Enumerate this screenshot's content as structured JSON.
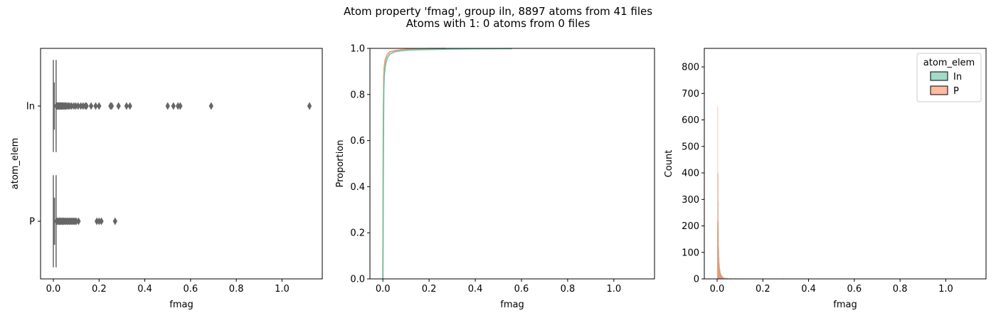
{
  "figure": {
    "title_line1": "Atom property 'fmag', group iln, 8897 atoms from 41 files",
    "title_line2": "Atoms with 1: 0 atoms from 0 files"
  },
  "colors": {
    "In": "#66c2a5",
    "P": "#fc8d62",
    "box": "#666666",
    "axis": "#000000"
  },
  "chart_data": [
    {
      "type": "boxplot",
      "xlabel": "fmag",
      "ylabel": "atom_elem",
      "xlim": [
        -0.056,
        1.176
      ],
      "xticks": [
        "0.0",
        "0.2",
        "0.4",
        "0.6",
        "0.8",
        "1.0"
      ],
      "xtick_values": [
        0,
        0.2,
        0.4,
        0.6,
        0.8,
        1.0
      ],
      "categories": [
        "In",
        "P"
      ],
      "boxes": [
        {
          "name": "In",
          "q1": 0.001,
          "median": 0.002,
          "q3": 0.004,
          "whisker_low": 0.0,
          "whisker_high": 0.012,
          "cap_halfwidth": 0.4,
          "box_halfwidth": 0.2,
          "outliers": [
            0.013,
            0.016,
            0.019,
            0.022,
            0.025,
            0.028,
            0.031,
            0.034,
            0.037,
            0.04,
            0.043,
            0.047,
            0.051,
            0.055,
            0.06,
            0.066,
            0.072,
            0.08,
            0.09,
            0.098,
            0.108,
            0.12,
            0.13,
            0.14,
            0.145,
            0.165,
            0.185,
            0.2,
            0.25,
            0.255,
            0.285,
            0.32,
            0.335,
            0.5,
            0.525,
            0.545,
            0.555,
            0.69,
            1.12
          ]
        },
        {
          "name": "P",
          "q1": 0.001,
          "median": 0.002,
          "q3": 0.005,
          "whisker_low": 0.0,
          "whisker_high": 0.012,
          "cap_halfwidth": 0.4,
          "box_halfwidth": 0.2,
          "outliers": [
            0.014,
            0.018,
            0.022,
            0.026,
            0.03,
            0.034,
            0.038,
            0.042,
            0.046,
            0.05,
            0.055,
            0.06,
            0.065,
            0.07,
            0.075,
            0.08,
            0.085,
            0.09,
            0.095,
            0.1,
            0.11,
            0.19,
            0.2,
            0.21,
            0.27
          ]
        }
      ]
    },
    {
      "type": "line",
      "subtype": "ecdf",
      "xlabel": "fmag",
      "ylabel": "Proportion",
      "xlim": [
        -0.056,
        1.176
      ],
      "ylim": [
        0,
        1
      ],
      "xticks": [
        "0.0",
        "0.2",
        "0.4",
        "0.6",
        "0.8",
        "1.0"
      ],
      "xtick_values": [
        0,
        0.2,
        0.4,
        0.6,
        0.8,
        1.0
      ],
      "yticks": [
        "0.0",
        "0.2",
        "0.4",
        "0.6",
        "0.8",
        "1.0"
      ],
      "ytick_values": [
        0,
        0.2,
        0.4,
        0.6,
        0.8,
        1.0
      ],
      "series": [
        {
          "name": "P",
          "x": [
            0.0,
            0.001,
            0.002,
            0.004,
            0.006,
            0.01,
            0.015,
            0.02,
            0.03,
            0.05,
            0.08,
            0.12,
            0.2,
            0.27
          ],
          "y": [
            0.0,
            0.3,
            0.7,
            0.88,
            0.92,
            0.95,
            0.965,
            0.975,
            0.985,
            0.99,
            0.994,
            0.997,
            0.999,
            1.0
          ]
        },
        {
          "name": "In",
          "x": [
            0.0,
            0.001,
            0.002,
            0.004,
            0.006,
            0.01,
            0.015,
            0.02,
            0.03,
            0.05,
            0.08,
            0.12,
            0.2,
            0.3,
            0.4,
            0.56
          ],
          "y": [
            0.0,
            0.2,
            0.55,
            0.82,
            0.88,
            0.92,
            0.945,
            0.96,
            0.975,
            0.985,
            0.99,
            0.993,
            0.995,
            0.997,
            0.998,
            0.999
          ]
        }
      ]
    },
    {
      "type": "bar",
      "subtype": "histogram",
      "xlabel": "fmag",
      "ylabel": "Count",
      "xlim": [
        -0.056,
        1.176
      ],
      "ylim": [
        0,
        870
      ],
      "xticks": [
        "0.0",
        "0.2",
        "0.4",
        "0.6",
        "0.8",
        "1.0"
      ],
      "xtick_values": [
        0,
        0.2,
        0.4,
        0.6,
        0.8,
        1.0
      ],
      "yticks": [
        "0",
        "100",
        "200",
        "300",
        "400",
        "500",
        "600",
        "700",
        "800"
      ],
      "ytick_values": [
        0,
        100,
        200,
        300,
        400,
        500,
        600,
        700,
        800
      ],
      "bin_width": 0.0014,
      "legend": {
        "title": "atom_elem",
        "entries": [
          "In",
          "P"
        ],
        "placement": "top-right"
      },
      "series": [
        {
          "name": "In",
          "x": [
            0.0007,
            0.0021,
            0.0035,
            0.0049,
            0.0063,
            0.0077,
            0.0091,
            0.0105,
            0.0119,
            0.0133,
            0.0147,
            0.0161,
            0.0175,
            0.0189,
            0.0203,
            0.0217,
            0.0231,
            0.0259,
            0.0287,
            0.0315,
            0.0371,
            0.0441,
            0.055,
            0.075,
            0.2,
            0.29,
            0.54,
            0.55
          ],
          "values": [
            180,
            395,
            290,
            200,
            120,
            85,
            60,
            45,
            38,
            30,
            24,
            20,
            16,
            13,
            11,
            9,
            8,
            6,
            5,
            4,
            3,
            3,
            2,
            2,
            2,
            3,
            2,
            2
          ]
        },
        {
          "name": "P",
          "x": [
            0.0007,
            0.0021,
            0.0035,
            0.0049,
            0.0063,
            0.0077,
            0.0091,
            0.0105,
            0.0119,
            0.0133,
            0.0147,
            0.0161,
            0.0175,
            0.0189,
            0.0203,
            0.0231,
            0.0259,
            0.0301,
            0.0371,
            0.0455,
            0.06,
            0.08,
            0.1
          ],
          "values": [
            220,
            650,
            400,
            215,
            110,
            75,
            55,
            40,
            30,
            24,
            20,
            18,
            15,
            13,
            12,
            10,
            9,
            7,
            6,
            5,
            4,
            3,
            2
          ]
        }
      ]
    }
  ]
}
